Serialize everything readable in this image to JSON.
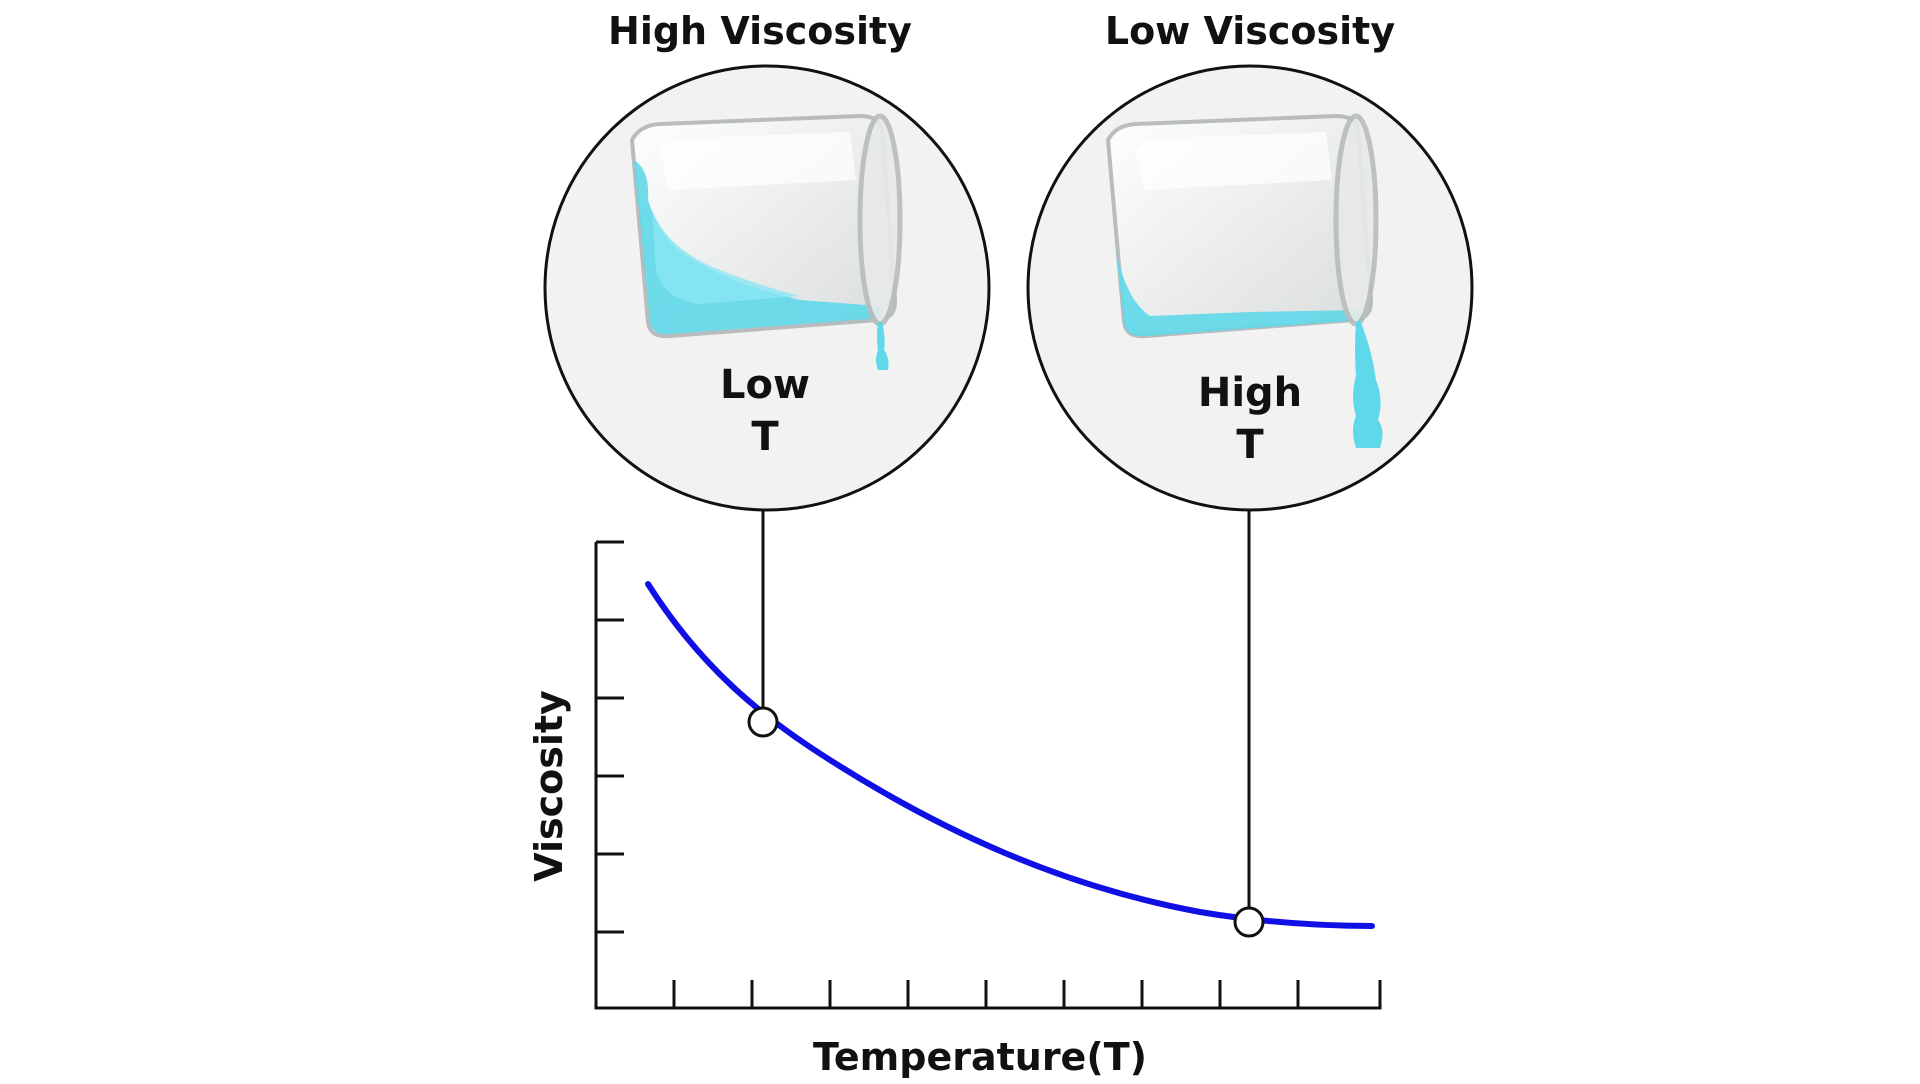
{
  "labels": {
    "left_heading": "High Viscosity",
    "right_heading": "Low Viscosity",
    "left_temp_line1": "Low",
    "left_temp_line2": "T",
    "right_temp_line1": "High",
    "right_temp_line2": "T",
    "y_axis": "Viscosity",
    "x_axis": "Temperature(T)"
  },
  "colors": {
    "curve": "#1010e6",
    "liquid": "#5fd8ea",
    "liquid_light": "#8ae6f2",
    "circle_fill": "#f2f2f2",
    "axis": "#111111"
  },
  "icons": {
    "left_beaker": "beaker-pouring-thick-liquid-icon",
    "right_beaker": "beaker-pouring-thin-liquid-icon"
  }
}
